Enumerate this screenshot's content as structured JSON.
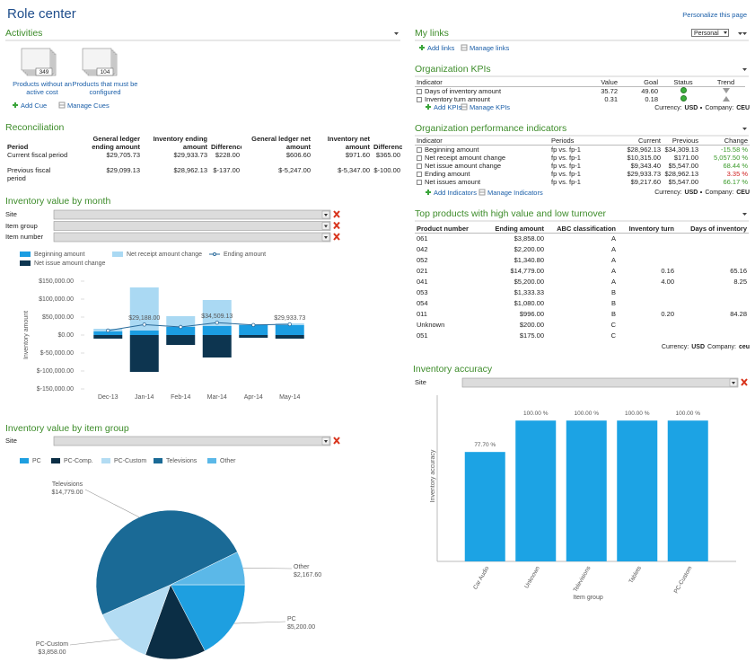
{
  "header": {
    "title": "Role center",
    "personalize": "Personalize this page"
  },
  "activities": {
    "title": "Activities",
    "cues": [
      {
        "count": 349,
        "label": "Products without an active cost"
      },
      {
        "count": 104,
        "label": "Products that must be configured"
      }
    ],
    "actions": [
      "Add Cue",
      "Manage Cues"
    ]
  },
  "reconciliation": {
    "title": "Reconciliation",
    "columns": [
      "Period",
      "General ledger ending amount",
      "Inventory ending amount",
      "Difference",
      "General ledger net amount",
      "Inventory net amount",
      "Difference"
    ],
    "rows": [
      [
        "Current fiscal period",
        "$29,705.73",
        "$29,933.73",
        "$228.00",
        "$606.60",
        "$971.60",
        "$365.00"
      ],
      [
        "Previous fiscal period",
        "$29,099.13",
        "$28,962.13",
        "$-137.00",
        "$-5,247.00",
        "$-5,347.00",
        "$-100.00"
      ]
    ]
  },
  "my_links": {
    "title": "My links",
    "view": "Personal",
    "actions": [
      "Add links",
      "Manage links"
    ]
  },
  "org_kpis": {
    "title": "Organization KPIs",
    "columns": [
      "Indicator",
      "Value",
      "Goal",
      "Status",
      "Trend"
    ],
    "rows": [
      [
        "Days of inventory amount",
        "35.72",
        "49.60"
      ],
      [
        "Inventory turn amount",
        "0.31",
        "0.18"
      ]
    ],
    "actions": [
      "Add KPIs",
      "Manage KPIs"
    ],
    "footer": {
      "currency_label": "Currency:",
      "currency": "USD",
      "company_label": "Company:",
      "company": "CEU"
    }
  },
  "org_performance": {
    "title": "Organization performance indicators",
    "columns": [
      "Indicator",
      "Periods",
      "Current",
      "Previous",
      "Change"
    ],
    "rows": [
      [
        "Beginning amount",
        "fp vs. fp-1",
        "$28,962.13",
        "$34,309.13",
        "-15.58 %"
      ],
      [
        "Net receipt amount change",
        "fp vs. fp-1",
        "$10,315.00",
        "$171.00",
        "5,057.50 %"
      ],
      [
        "Net issue amount change",
        "fp vs. fp-1",
        "$9,343.40",
        "$5,547.00",
        "68.44 %"
      ],
      [
        "Ending amount",
        "fp vs. fp-1",
        "$29,933.73",
        "$28,962.13",
        "3.35 %"
      ],
      [
        "Net issues amount",
        "fp vs. fp-1",
        "$9,217.60",
        "$5,547.00",
        "66.17 %"
      ]
    ],
    "change_colors": [
      "#3a9a2a",
      "#3a9a2a",
      "#3a9a2a",
      "#d02020",
      "#3a9a2a"
    ],
    "actions": [
      "Add Indicators",
      "Manage Indicators"
    ],
    "footer": {
      "currency_label": "Currency:",
      "currency": "USD",
      "company_label": "Company:",
      "company": "CEU"
    }
  },
  "top_products": {
    "title": "Top products with high value and low turnover",
    "columns": [
      "Product number",
      "Ending amount",
      "ABC classification",
      "Inventory turn",
      "Days of inventory"
    ],
    "rows": [
      [
        "061",
        "$3,858.00",
        "A"
      ],
      [
        "042",
        "$2,200.00",
        "A"
      ],
      [
        "052",
        "$1,340.80",
        "A"
      ],
      [
        "021",
        "$14,779.00",
        "A",
        "0.16",
        "65.16"
      ],
      [
        "041",
        "$5,200.00",
        "A",
        "4.00",
        "8.25"
      ],
      [
        "053",
        "$1,333.33",
        "B"
      ],
      [
        "054",
        "$1,080.00",
        "B"
      ],
      [
        "011",
        "$996.00",
        "B",
        "0.20",
        "84.28"
      ],
      [
        "Unknown",
        "$200.00",
        "C"
      ],
      [
        "051",
        "$175.00",
        "C"
      ]
    ],
    "footer": {
      "currency_label": "Currency:",
      "currency": "USD",
      "company_label": "Company:",
      "company": "ceu"
    }
  },
  "chart_data": [
    {
      "type": "bar",
      "title": "Inventory value by month",
      "filters": [
        "Site",
        "Item group",
        "Item number"
      ],
      "categories": [
        "Dec-13",
        "Jan-14",
        "Feb-14",
        "Mar-14",
        "Apr-14",
        "May-14"
      ],
      "ylabel": "Inventory amount",
      "ylim": [
        -150000,
        150000
      ],
      "yticks": [
        {
          "value": 150000,
          "label": "$150,000.00"
        },
        {
          "value": 100000,
          "label": "$100,000.00"
        },
        {
          "value": 50000,
          "label": "$50,000.00"
        },
        {
          "value": 0,
          "label": "$0.00"
        },
        {
          "value": -50000,
          "label": "$-50,000.00"
        },
        {
          "value": -100000,
          "label": "$-100,000.00"
        },
        {
          "value": -150000,
          "label": "$-150,000.00"
        }
      ],
      "series": [
        {
          "name": "Beginning amount",
          "color": "#1b9de2",
          "type": "bar",
          "values": [
            10000,
            12500,
            22500,
            25000,
            27500,
            27500
          ]
        },
        {
          "name": "Net receipt amount change",
          "color": "#aad9f3",
          "type": "bar",
          "values": [
            7500,
            120000,
            30000,
            72500,
            2500,
            5000
          ]
        },
        {
          "name": "Ending amount",
          "color": "#2a6a9a",
          "type": "line",
          "values": [
            12500,
            29188,
            22500,
            34509.13,
            28000,
            29933.73
          ],
          "value_labels": [
            null,
            "$29,188.00",
            null,
            "$34,509.13",
            null,
            "$29,933.73"
          ]
        },
        {
          "name": "Net issue amount change",
          "color": "#0d3550",
          "type": "bar",
          "values": [
            -10000,
            -102500,
            -27500,
            -62500,
            -7500,
            -10000
          ]
        }
      ]
    },
    {
      "type": "pie",
      "title": "Inventory value by item group",
      "filters": [
        "Site"
      ],
      "categories": [
        "PC",
        "PC-Comp.",
        "PC-Custom",
        "Televisions",
        "Other"
      ],
      "values": [
        5200,
        3929.13,
        3858,
        14779,
        2167.6
      ],
      "value_labels": [
        "$5,200.00",
        null,
        "$3,858.00",
        "$14,779.00",
        "$2,167.60"
      ],
      "colors": [
        "#1e9fe0",
        "#0b2e45",
        "#b3dcf3",
        "#1a6a96",
        "#5bb8e8"
      ]
    },
    {
      "type": "bar",
      "title": "Inventory accuracy",
      "filters": [
        "Site"
      ],
      "categories": [
        "Car Audio",
        "Unknown",
        "Televisions",
        "Tablets",
        "PC-Custom"
      ],
      "values": [
        77.7,
        100,
        100,
        100,
        100
      ],
      "value_labels": [
        "77.70 %",
        "100.00 %",
        "100.00 %",
        "100.00 %",
        "100.00 %"
      ],
      "color": "#1ca3e4",
      "ylim": [
        0,
        118
      ],
      "xlabel": "Item group",
      "ylabel": "Inventory accuracy"
    }
  ]
}
